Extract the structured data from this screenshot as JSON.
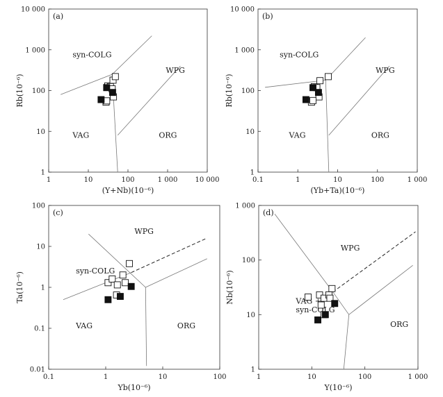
{
  "chart_data": [
    {
      "type": "scatter",
      "panel_label": "(a)",
      "x_scale": "log",
      "y_scale": "log",
      "xlim": [
        1,
        10000
      ],
      "ylim": [
        1,
        10000
      ],
      "xlabel": "(Y+Nb)(10⁻⁶)",
      "ylabel": "Rb(10⁻⁶)",
      "xticks": [
        1,
        10,
        100,
        1000,
        10000
      ],
      "xtick_labels": [
        "1",
        "10",
        "100",
        "1 000",
        "10 000"
      ],
      "yticks": [
        1,
        10,
        100,
        1000,
        10000
      ],
      "ytick_labels": [
        "1",
        "10",
        "100",
        "1 000",
        "10 000"
      ],
      "fields": [
        {
          "name": "syn-COLG",
          "x": 4,
          "y": 650
        },
        {
          "name": "WPG",
          "x": 900,
          "y": 270
        },
        {
          "name": "VAG",
          "x": 4,
          "y": 7
        },
        {
          "name": "ORG",
          "x": 600,
          "y": 7
        }
      ],
      "boundaries": [
        {
          "style": "solid",
          "points": [
            [
              2,
              80
            ],
            [
              40,
              250
            ],
            [
              400,
              2200
            ]
          ]
        },
        {
          "style": "solid",
          "points": [
            [
              40,
              250
            ],
            [
              55,
              1
            ]
          ]
        },
        {
          "style": "solid",
          "points": [
            [
              55,
              8
            ],
            [
              2100,
              400
            ]
          ]
        }
      ],
      "series": [
        {
          "marker": "open-square",
          "points": [
            [
              30,
              120
            ],
            [
              31,
              130
            ],
            [
              36,
              125
            ],
            [
              40,
              110
            ],
            [
              42,
              180
            ],
            [
              48,
              220
            ],
            [
              43,
              70
            ],
            [
              28,
              52
            ],
            [
              29,
              56
            ]
          ]
        },
        {
          "marker": "filled-square",
          "points": [
            [
              21,
              60
            ],
            [
              29,
              118
            ],
            [
              41,
              90
            ]
          ]
        }
      ]
    },
    {
      "type": "scatter",
      "panel_label": "(b)",
      "x_scale": "log",
      "y_scale": "log",
      "xlim": [
        0.1,
        1000
      ],
      "ylim": [
        1,
        10000
      ],
      "xlabel": "(Yb+Ta)(10⁻⁶)",
      "ylabel": "Rb(10⁻⁶)",
      "xticks": [
        0.1,
        1,
        10,
        100,
        1000
      ],
      "xtick_labels": [
        "0.1",
        "1",
        "10",
        "100",
        "1 000"
      ],
      "yticks": [
        1,
        10,
        100,
        1000,
        10000
      ],
      "ytick_labels": [
        "1",
        "10",
        "100",
        "1 000",
        "10 000"
      ],
      "fields": [
        {
          "name": "syn-COLG",
          "x": 0.35,
          "y": 650
        },
        {
          "name": "WPG",
          "x": 90,
          "y": 270
        },
        {
          "name": "VAG",
          "x": 0.6,
          "y": 7
        },
        {
          "name": "ORG",
          "x": 70,
          "y": 7
        }
      ],
      "boundaries": [
        {
          "style": "solid",
          "points": [
            [
              0.15,
              120
            ],
            [
              5,
              180
            ]
          ]
        },
        {
          "style": "solid",
          "points": [
            [
              5,
              180
            ],
            [
              50,
              2000
            ]
          ]
        },
        {
          "style": "solid",
          "points": [
            [
              5,
              180
            ],
            [
              6,
              1
            ]
          ]
        },
        {
          "style": "solid",
          "points": [
            [
              6,
              8
            ],
            [
              200,
              400
            ]
          ]
        }
      ],
      "series": [
        {
          "marker": "open-square",
          "points": [
            [
              2.6,
              125
            ],
            [
              3.0,
              118
            ],
            [
              3.6,
              175
            ],
            [
              5.8,
              220
            ],
            [
              3.4,
              70
            ],
            [
              2.2,
              52
            ],
            [
              2.4,
              57
            ]
          ]
        },
        {
          "marker": "filled-square",
          "points": [
            [
              1.6,
              60
            ],
            [
              2.4,
              118
            ],
            [
              3.3,
              90
            ]
          ]
        }
      ]
    },
    {
      "type": "scatter",
      "panel_label": "(c)",
      "x_scale": "log",
      "y_scale": "log",
      "xlim": [
        0.1,
        100
      ],
      "ylim": [
        0.01,
        100
      ],
      "xlabel": "Yb(10⁻⁶)",
      "ylabel": "Ta(10⁻⁶)",
      "xticks": [
        0.1,
        1,
        10,
        100
      ],
      "xtick_labels": [
        "0.1",
        "1",
        "10",
        "100"
      ],
      "yticks": [
        0.01,
        0.1,
        1,
        10,
        100
      ],
      "ytick_labels": [
        "0.01",
        "0.1",
        "1",
        "10",
        "100"
      ],
      "fields": [
        {
          "name": "WPG",
          "x": 3.2,
          "y": 20
        },
        {
          "name": "syn-COLG",
          "x": 0.3,
          "y": 2.2
        },
        {
          "name": "VAG",
          "x": 0.3,
          "y": 0.1
        },
        {
          "name": "ORG",
          "x": 18,
          "y": 0.1
        }
      ],
      "boundaries": [
        {
          "style": "solid",
          "points": [
            [
              0.5,
              20
            ],
            [
              5,
              1
            ]
          ]
        },
        {
          "style": "solid",
          "points": [
            [
              0.18,
              0.5
            ],
            [
              2.8,
              2.3
            ]
          ]
        },
        {
          "style": "solid",
          "points": [
            [
              5,
              1
            ],
            [
              5.2,
              0.012
            ]
          ]
        },
        {
          "style": "solid",
          "points": [
            [
              5,
              1
            ],
            [
              60,
              5
            ]
          ]
        },
        {
          "style": "dashed",
          "points": [
            [
              2.8,
              2.3
            ],
            [
              60,
              16
            ]
          ]
        }
      ],
      "series": [
        {
          "marker": "open-square",
          "points": [
            [
              1.1,
              1.3
            ],
            [
              1.3,
              1.6
            ],
            [
              1.6,
              1.15
            ],
            [
              2.0,
              2.0
            ],
            [
              2.6,
              3.8
            ],
            [
              2.2,
              1.3
            ],
            [
              1.55,
              0.65
            ]
          ]
        },
        {
          "marker": "filled-square",
          "points": [
            [
              1.1,
              0.5
            ],
            [
              1.8,
              0.6
            ],
            [
              2.8,
              1.05
            ]
          ]
        }
      ]
    },
    {
      "type": "scatter",
      "panel_label": "(d)",
      "x_scale": "log",
      "y_scale": "log",
      "xlim": [
        1,
        1000
      ],
      "ylim": [
        1,
        1000
      ],
      "xlabel": "Y(10⁻⁶)",
      "ylabel": "Nb(10⁻⁶)",
      "xticks": [
        1,
        10,
        100,
        1000
      ],
      "xtick_labels": [
        "1",
        "10",
        "100",
        "1 000"
      ],
      "yticks": [
        1,
        10,
        100,
        1000
      ],
      "ytick_labels": [
        "1",
        "10",
        "100",
        "1 000"
      ],
      "fields": [
        {
          "name": "WPG",
          "x": 35,
          "y": 150
        },
        {
          "name": "VAG +",
          "x": 5,
          "y": 16
        },
        {
          "name": "syn-COLG",
          "x": 5,
          "y": 11
        },
        {
          "name": "ORG",
          "x": 300,
          "y": 6
        }
      ],
      "boundaries": [
        {
          "style": "solid",
          "points": [
            [
              2,
              700
            ],
            [
              25,
              26
            ]
          ]
        },
        {
          "style": "solid",
          "points": [
            [
              25,
              26
            ],
            [
              50,
              10
            ]
          ]
        },
        {
          "style": "solid",
          "points": [
            [
              50,
              10
            ],
            [
              40,
              1
            ]
          ]
        },
        {
          "style": "solid",
          "points": [
            [
              50,
              10
            ],
            [
              800,
              80
            ]
          ]
        },
        {
          "style": "dashed",
          "points": [
            [
              25,
              26
            ],
            [
              900,
              330
            ]
          ]
        }
      ],
      "series": [
        {
          "marker": "open-square",
          "points": [
            [
              8.5,
              21
            ],
            [
              14,
              23
            ],
            [
              17,
              20
            ],
            [
              21,
              23
            ],
            [
              24,
              30
            ],
            [
              15,
              15
            ],
            [
              22,
              20
            ],
            [
              17,
              10
            ]
          ]
        },
        {
          "marker": "filled-square",
          "points": [
            [
              13,
              8
            ],
            [
              18,
              10
            ],
            [
              27,
              16
            ]
          ]
        }
      ]
    }
  ]
}
